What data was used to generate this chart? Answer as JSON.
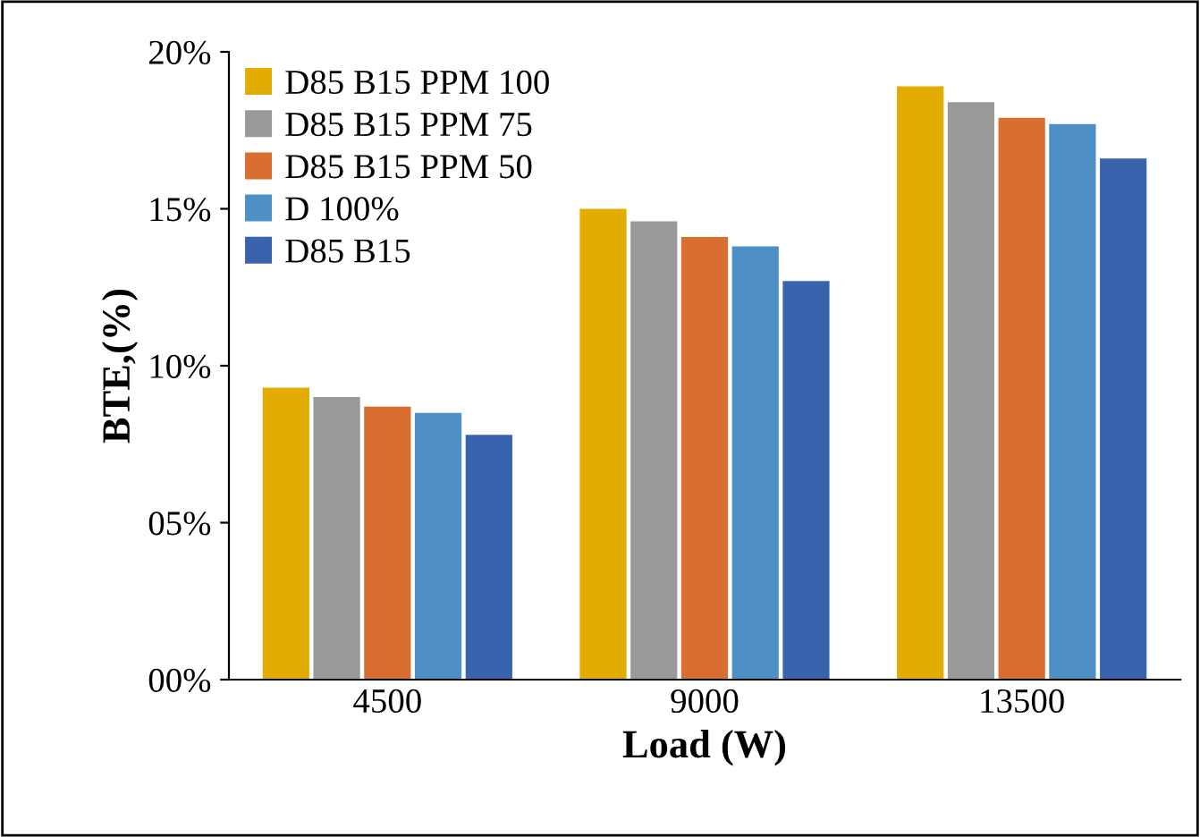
{
  "chart_data": {
    "type": "bar",
    "xlabel": "Load (W)",
    "ylabel": "BTE,(%)",
    "categories": [
      "4500",
      "9000",
      "13500"
    ],
    "series": [
      {
        "name": "D85 B15 PPM 100",
        "color": "#e3ac00",
        "values": [
          9.3,
          15.0,
          18.9
        ]
      },
      {
        "name": "D85 B15 PPM 75",
        "color": "#999999",
        "values": [
          9.0,
          14.6,
          18.4
        ]
      },
      {
        "name": "D85 B15 PPM 50",
        "color": "#d86e2f",
        "values": [
          8.7,
          14.1,
          17.9
        ]
      },
      {
        "name": "D 100%",
        "color": "#4e90c6",
        "values": [
          8.5,
          13.8,
          17.7
        ]
      },
      {
        "name": "D85 B15",
        "color": "#3a63ad",
        "values": [
          7.8,
          12.7,
          16.6
        ]
      }
    ],
    "ylim": [
      0,
      20
    ],
    "yticks": [
      {
        "value": 0,
        "label": "00%"
      },
      {
        "value": 5,
        "label": "05%"
      },
      {
        "value": 10,
        "label": "10%"
      },
      {
        "value": 15,
        "label": "15%"
      },
      {
        "value": 20,
        "label": "20%"
      }
    ],
    "grid": false,
    "legend": "top left"
  }
}
